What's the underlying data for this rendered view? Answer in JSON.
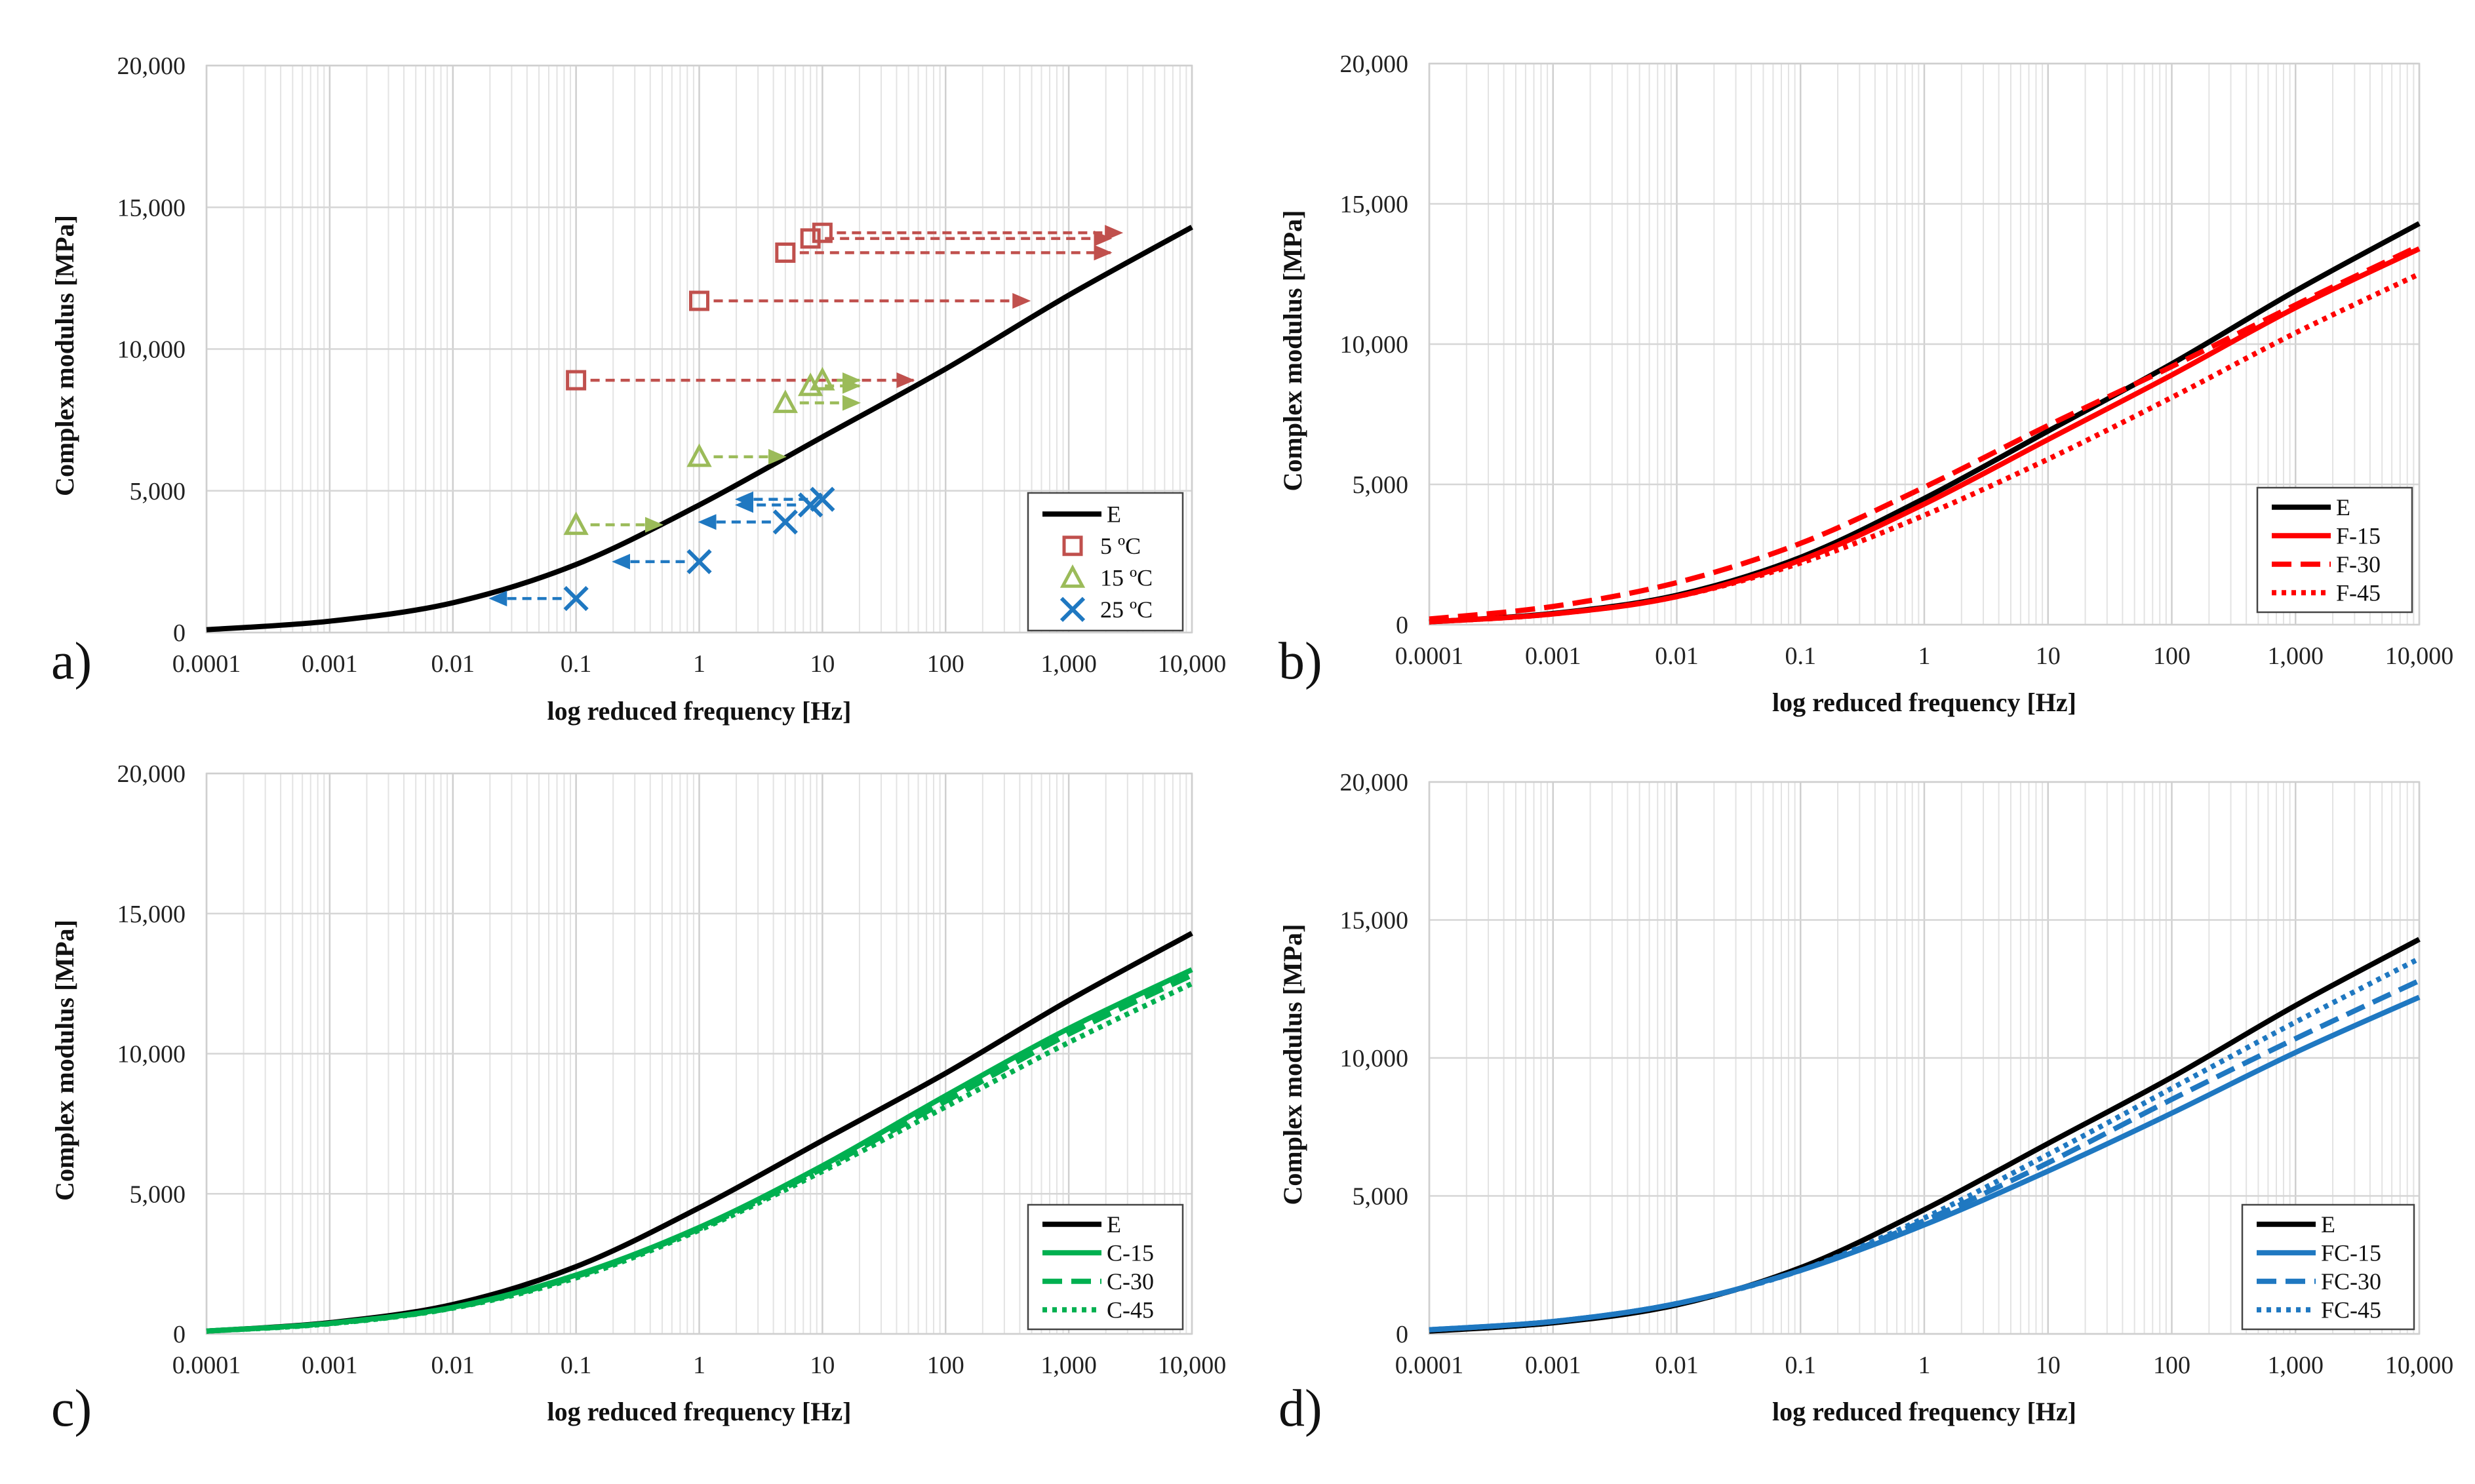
{
  "chart_data": [
    {
      "type": "line",
      "panel_label": "a)",
      "xlabel": "log reduced frequency [Hz]",
      "ylabel": "Complex  modulus [MPa]",
      "xscale": "log",
      "xlim": [
        0.0001,
        10000
      ],
      "ylim": [
        0,
        20000
      ],
      "x_tick_labels": [
        "0.0001",
        "0.001",
        "0.01",
        "0.1",
        "1",
        "10",
        "100",
        "1,000",
        "10,000"
      ],
      "y_tick_labels": [
        "0",
        "5,000",
        "10,000",
        "15,000",
        "20,000"
      ],
      "legend_position": "bottom-right",
      "series": [
        {
          "name": "E",
          "kind": "line",
          "color": "#000000",
          "dash": "solid",
          "x": [
            0.0001,
            0.001,
            0.01,
            0.1,
            1,
            10,
            100,
            1000,
            10000
          ],
          "values": [
            100,
            400,
            1050,
            2400,
            4500,
            6900,
            9300,
            11900,
            14300
          ]
        },
        {
          "name": "5 ºC",
          "kind": "marker",
          "marker": "square",
          "color": "#c0504d",
          "x": [
            0.1,
            1,
            5,
            8,
            10
          ],
          "values": [
            8900,
            11700,
            13400,
            13900,
            14100
          ],
          "shift_to": [
            55,
            480,
            2200,
            2200,
            2700
          ]
        },
        {
          "name": "15 ºC",
          "kind": "marker",
          "marker": "triangle",
          "color": "#9bbb59",
          "x": [
            0.1,
            1,
            5,
            8,
            10
          ],
          "values": [
            3800,
            6200,
            8100,
            8700,
            8900
          ],
          "shift_to": [
            0.5,
            5,
            20,
            20,
            20
          ]
        },
        {
          "name": "25 ºC",
          "kind": "marker",
          "marker": "x",
          "color": "#1f78c1",
          "x": [
            0.1,
            1,
            5,
            8,
            10
          ],
          "values": [
            1200,
            2500,
            3900,
            4500,
            4700
          ],
          "shift_to": [
            0.02,
            0.2,
            1,
            2,
            2
          ]
        }
      ]
    },
    {
      "type": "line",
      "panel_label": "b)",
      "xlabel": "log reduced frequency [Hz]",
      "ylabel": "Complex modulus [MPa]",
      "xscale": "log",
      "xlim": [
        0.0001,
        10000
      ],
      "ylim": [
        0,
        20000
      ],
      "x_tick_labels": [
        "0.0001",
        "0.001",
        "0.01",
        "0.1",
        "1",
        "10",
        "100",
        "1,000",
        "10,000"
      ],
      "y_tick_labels": [
        "0",
        "5,000",
        "10,000",
        "15,000",
        "20,000"
      ],
      "legend_position": "bottom-right",
      "series": [
        {
          "name": "E",
          "color": "#000000",
          "dash": "solid",
          "x": [
            0.0001,
            0.001,
            0.01,
            0.1,
            1,
            10,
            100,
            1000,
            10000
          ],
          "values": [
            100,
            400,
            1050,
            2400,
            4500,
            6900,
            9300,
            11900,
            14300
          ]
        },
        {
          "name": "F-15",
          "color": "#ff0000",
          "dash": "solid",
          "x": [
            0.0001,
            0.001,
            0.01,
            0.1,
            1,
            10,
            100,
            1000,
            10000
          ],
          "values": [
            100,
            380,
            1000,
            2300,
            4300,
            6600,
            8900,
            11300,
            13400
          ]
        },
        {
          "name": "F-30",
          "color": "#ff0000",
          "dash": "dashed",
          "x": [
            0.0001,
            0.001,
            0.01,
            0.1,
            1,
            10,
            100,
            1000,
            10000
          ],
          "values": [
            200,
            650,
            1500,
            2900,
            4900,
            7100,
            9200,
            11400,
            13500
          ]
        },
        {
          "name": "F-45",
          "color": "#ff0000",
          "dash": "dotted",
          "x": [
            0.0001,
            0.001,
            0.01,
            0.1,
            1,
            10,
            100,
            1000,
            10000
          ],
          "values": [
            100,
            380,
            1000,
            2200,
            3900,
            5900,
            8100,
            10400,
            12500
          ]
        }
      ]
    },
    {
      "type": "line",
      "panel_label": "c)",
      "xlabel": "log reduced frequency [Hz]",
      "ylabel": "Complex  modulus [MPa]",
      "xscale": "log",
      "xlim": [
        0.0001,
        10000
      ],
      "ylim": [
        0,
        20000
      ],
      "x_tick_labels": [
        "0.0001",
        "0.001",
        "0.01",
        "0.1",
        "1",
        "10",
        "100",
        "1,000",
        "10,000"
      ],
      "y_tick_labels": [
        "0",
        "5,000",
        "10,000",
        "15,000",
        "20,000"
      ],
      "legend_position": "bottom-right",
      "series": [
        {
          "name": "E",
          "color": "#000000",
          "dash": "solid",
          "x": [
            0.0001,
            0.001,
            0.01,
            0.1,
            1,
            10,
            100,
            1000,
            10000
          ],
          "values": [
            100,
            400,
            1050,
            2400,
            4500,
            6900,
            9300,
            11900,
            14300
          ]
        },
        {
          "name": "C-15",
          "color": "#00b050",
          "dash": "solid",
          "x": [
            0.0001,
            0.001,
            0.01,
            0.1,
            1,
            10,
            100,
            1000,
            10000
          ],
          "values": [
            100,
            380,
            950,
            2100,
            3800,
            6000,
            8500,
            10900,
            13000
          ]
        },
        {
          "name": "C-30",
          "color": "#00b050",
          "dash": "dashed",
          "x": [
            0.0001,
            0.001,
            0.01,
            0.1,
            1,
            10,
            100,
            1000,
            10000
          ],
          "values": [
            100,
            370,
            930,
            2050,
            3750,
            5900,
            8300,
            10700,
            12800
          ]
        },
        {
          "name": "C-45",
          "color": "#00b050",
          "dash": "dotted",
          "x": [
            0.0001,
            0.001,
            0.01,
            0.1,
            1,
            10,
            100,
            1000,
            10000
          ],
          "values": [
            100,
            360,
            920,
            2000,
            3700,
            5800,
            8100,
            10400,
            12500
          ]
        }
      ]
    },
    {
      "type": "line",
      "panel_label": "d)",
      "xlabel": "log reduced frequency [Hz]",
      "ylabel": "Complex modulus [MPa]",
      "xscale": "log",
      "xlim": [
        0.0001,
        10000
      ],
      "ylim": [
        0,
        20000
      ],
      "x_tick_labels": [
        "0.0001",
        "0.001",
        "0.01",
        "0.1",
        "1",
        "10",
        "100",
        "1,000",
        "10,000"
      ],
      "y_tick_labels": [
        "0",
        "5,000",
        "10,000",
        "15,000",
        "20,000"
      ],
      "legend_position": "bottom-right",
      "series": [
        {
          "name": "E",
          "color": "#000000",
          "dash": "solid",
          "x": [
            0.0001,
            0.001,
            0.01,
            0.1,
            1,
            10,
            100,
            1000,
            10000
          ],
          "values": [
            100,
            400,
            1050,
            2400,
            4500,
            6900,
            9300,
            11900,
            14300
          ]
        },
        {
          "name": "FC-15",
          "color": "#1f78c1",
          "dash": "solid",
          "x": [
            0.0001,
            0.001,
            0.01,
            0.1,
            1,
            10,
            100,
            1000,
            10000
          ],
          "values": [
            150,
            450,
            1100,
            2300,
            3950,
            5900,
            8000,
            10200,
            12200
          ]
        },
        {
          "name": "FC-30",
          "color": "#1f78c1",
          "dash": "dashed",
          "x": [
            0.0001,
            0.001,
            0.01,
            0.1,
            1,
            10,
            100,
            1000,
            10000
          ],
          "values": [
            150,
            450,
            1100,
            2300,
            4100,
            6200,
            8500,
            10700,
            12800
          ]
        },
        {
          "name": "FC-45",
          "color": "#1f78c1",
          "dash": "dotted",
          "x": [
            0.0001,
            0.001,
            0.01,
            0.1,
            1,
            10,
            100,
            1000,
            10000
          ],
          "values": [
            150,
            450,
            1100,
            2300,
            4200,
            6500,
            8900,
            11300,
            13600
          ]
        }
      ]
    }
  ]
}
